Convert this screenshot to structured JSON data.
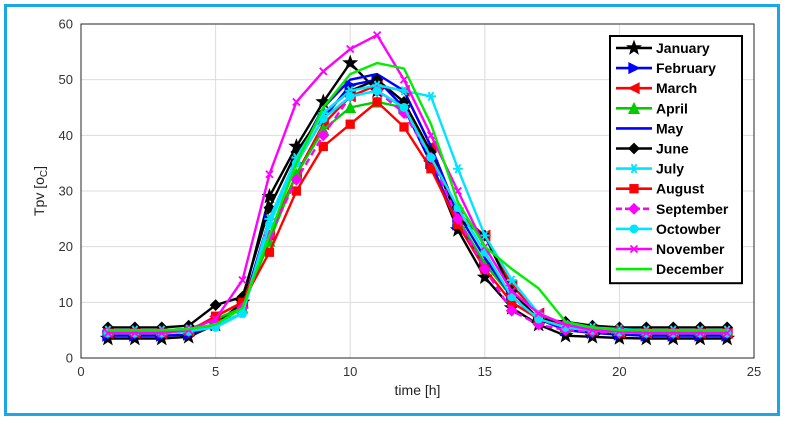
{
  "chart_data": {
    "type": "line",
    "title": "",
    "xlabel": "time [h]",
    "ylabel_main": "Tpv [o",
    "ylabel_sub": "C",
    "ylabel_close": "]",
    "xlim": [
      0,
      25
    ],
    "ylim": [
      0,
      60
    ],
    "xticks": [
      0,
      5,
      10,
      15,
      20,
      25
    ],
    "yticks": [
      0,
      10,
      20,
      30,
      40,
      50,
      60
    ],
    "grid": true,
    "legend_position": "top-right",
    "x": [
      1,
      2,
      3,
      4,
      5,
      6,
      7,
      8,
      9,
      10,
      11,
      12,
      13,
      14,
      15,
      16,
      17,
      18,
      19,
      20,
      21,
      22,
      23,
      24
    ],
    "series": [
      {
        "name": "January",
        "color": "#000000",
        "marker": "star",
        "dashed": false,
        "values": [
          3.5,
          3.5,
          3.5,
          3.8,
          6,
          10,
          29,
          38,
          46,
          53,
          48,
          45,
          35,
          23,
          14.5,
          9,
          6,
          4,
          3.8,
          3.6,
          3.5,
          3.5,
          3.5,
          3.5
        ]
      },
      {
        "name": "February",
        "color": "#0000ff",
        "marker": "triangle-right",
        "dashed": false,
        "values": [
          4,
          4,
          4,
          4.2,
          6,
          9,
          25,
          35,
          43,
          49,
          50,
          45,
          35,
          24,
          17,
          11,
          7,
          5,
          4.5,
          4.2,
          4,
          4,
          4,
          4
        ]
      },
      {
        "name": "March",
        "color": "#ff0000",
        "marker": "triangle-left",
        "dashed": false,
        "values": [
          4.5,
          4.5,
          4.5,
          4.8,
          7.5,
          10,
          22,
          33,
          42,
          47,
          49,
          48,
          38,
          26,
          22,
          13,
          8,
          5.5,
          5,
          4.6,
          4.5,
          4.5,
          4.5,
          4.5
        ]
      },
      {
        "name": "April",
        "color": "#00cc00",
        "marker": "triangle-up",
        "dashed": false,
        "values": [
          5,
          5,
          5,
          5.2,
          7,
          9,
          21,
          33,
          41,
          45,
          46,
          45,
          37,
          25,
          17,
          11,
          7,
          5.5,
          5.2,
          5,
          5,
          5,
          5,
          5
        ]
      },
      {
        "name": "May",
        "color": "#0000ff",
        "marker": "none",
        "dashed": false,
        "values": [
          5,
          5,
          5,
          5.2,
          6,
          8,
          24,
          36,
          45,
          50,
          51,
          48,
          38,
          26,
          18,
          11,
          7,
          5.5,
          5.2,
          5,
          5,
          5,
          5,
          5
        ]
      },
      {
        "name": "June",
        "color": "#000000",
        "marker": "diamond",
        "dashed": false,
        "values": [
          5.5,
          5.5,
          5.5,
          5.8,
          9.5,
          11,
          27,
          37,
          44,
          48,
          50,
          46,
          37,
          25,
          22,
          12,
          7,
          6.5,
          5.8,
          5.5,
          5.5,
          5.5,
          5.5,
          5.5
        ]
      },
      {
        "name": "July",
        "color": "#00e5ff",
        "marker": "star6",
        "dashed": false,
        "values": [
          5,
          5,
          5,
          5.2,
          6,
          8,
          25,
          36,
          44,
          48,
          49,
          48,
          47,
          34,
          22,
          14,
          8,
          6,
          5.5,
          5.2,
          5,
          5,
          5,
          5
        ]
      },
      {
        "name": "August",
        "color": "#ff0000",
        "marker": "square",
        "dashed": false,
        "values": [
          4.5,
          4.5,
          4.5,
          4.8,
          7.5,
          10,
          19,
          30,
          38,
          42,
          46,
          41.5,
          34,
          24,
          16,
          10,
          7,
          5.5,
          5,
          4.8,
          4.5,
          4.5,
          4.5,
          4.5
        ]
      },
      {
        "name": "September",
        "color": "#ff00ff",
        "marker": "diamond",
        "dashed": true,
        "values": [
          4.5,
          4.5,
          4.5,
          4.8,
          6,
          9,
          22,
          32,
          40,
          47,
          48,
          44,
          36,
          25,
          16,
          8.5,
          6,
          5,
          4.7,
          4.5,
          4.5,
          4.5,
          4.5,
          4.5
        ]
      },
      {
        "name": "Octowber",
        "color": "#00e5ff",
        "marker": "circle",
        "dashed": false,
        "values": [
          4.5,
          4.5,
          4.5,
          4.8,
          5.5,
          8,
          24,
          35,
          43,
          47,
          48,
          45,
          36,
          27,
          19,
          11,
          7,
          5.5,
          5,
          4.7,
          4.5,
          4.5,
          4.5,
          4.5
        ]
      },
      {
        "name": "November",
        "color": "#ff00ff",
        "marker": "x",
        "dashed": false,
        "values": [
          4.5,
          4.5,
          4.5,
          5,
          7,
          14,
          33,
          46,
          51.5,
          55.5,
          58,
          50,
          40,
          30,
          20,
          12,
          8,
          6,
          5,
          4.8,
          4.5,
          4.5,
          4.5,
          4.5
        ]
      },
      {
        "name": "December",
        "color": "#00ee00",
        "marker": "none",
        "dashed": false,
        "values": [
          5,
          5,
          5,
          5.2,
          6,
          9,
          22,
          35,
          45,
          51,
          53,
          52,
          42,
          28,
          20,
          16,
          12.5,
          6.5,
          5.5,
          5,
          5,
          5,
          5,
          5
        ]
      }
    ]
  }
}
